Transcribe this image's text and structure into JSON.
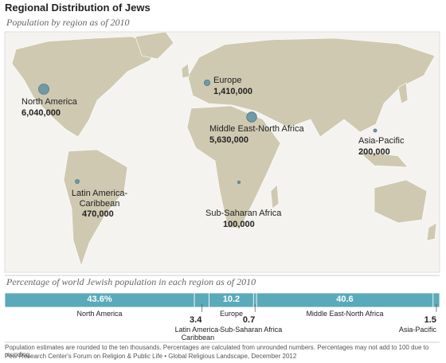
{
  "chart_data": [
    {
      "type": "bubble-map",
      "title": "Regional Distribution of Jews",
      "subtitle": "Population by region as of 2010",
      "categories": [
        "North America",
        "Europe",
        "Middle East-North Africa",
        "Asia-Pacific",
        "Latin America-Caribbean",
        "Sub-Saharan Africa"
      ],
      "values": [
        6040000,
        1410000,
        5630000,
        200000,
        470000,
        100000
      ],
      "value_labels": [
        "6,040,000",
        "1,410,000",
        "5,630,000",
        "200,000",
        "470,000",
        "100,000"
      ],
      "color": "#6f9aa6"
    },
    {
      "type": "stacked-bar",
      "title": "Percentage of world Jewish population in each region as of 2010",
      "categories": [
        "North America",
        "Latin America-Caribbean",
        "Europe",
        "Sub-Saharan Africa",
        "Middle East-North Africa",
        "Asia-Pacific"
      ],
      "values": [
        43.6,
        3.4,
        10.2,
        0.7,
        40.6,
        1.5
      ],
      "value_labels": [
        "43.6%",
        "3.4",
        "10.2",
        "0.7",
        "40.6",
        "1.5"
      ],
      "xlim": [
        0,
        100
      ],
      "color": "#5aaabb"
    }
  ],
  "footer": {
    "note": "Population estimates are rounded to the ten thousands. Percentages are calculated from unrounded numbers. Percentages may not add to 100 due to rounding.",
    "source": "Pew Research Center's Forum on Religion & Public Life • Global Religious Landscape, December 2012"
  }
}
